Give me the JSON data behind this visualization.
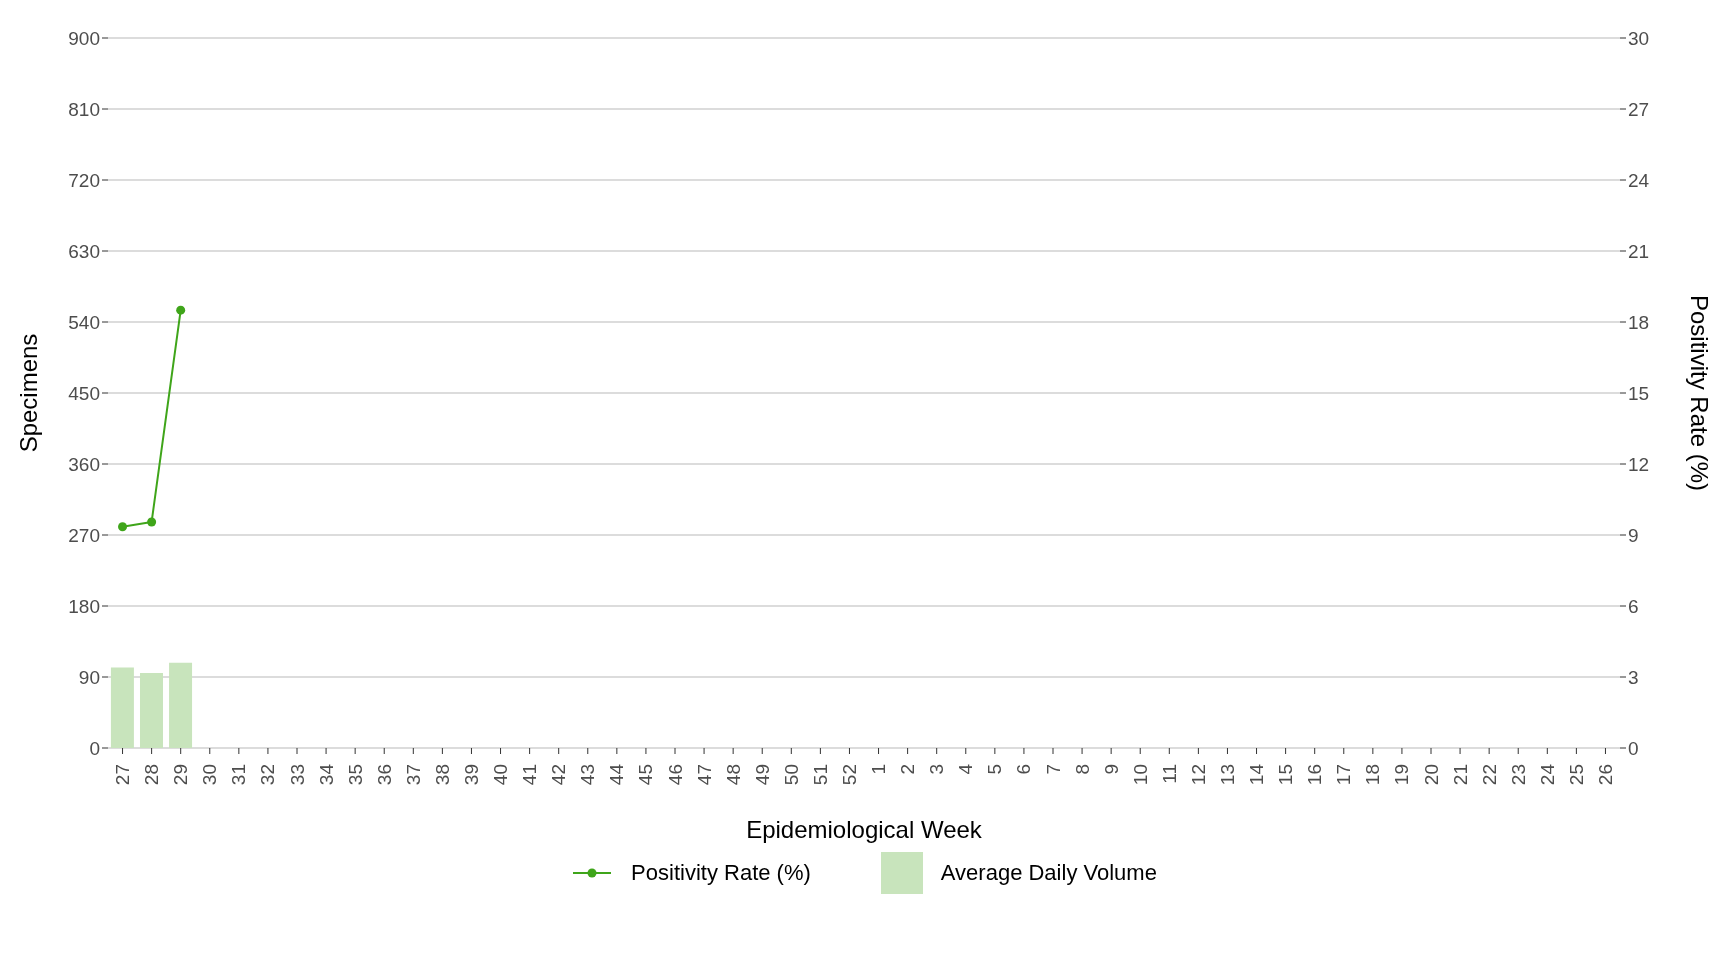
{
  "chart_data": {
    "type": "bar",
    "xlabel": "Epidemiological Week",
    "ylabel": "Specimens",
    "y2label": "Positivity Rate (%)",
    "categories": [
      "27",
      "28",
      "29",
      "30",
      "31",
      "32",
      "33",
      "34",
      "35",
      "36",
      "37",
      "38",
      "39",
      "40",
      "41",
      "42",
      "43",
      "44",
      "45",
      "46",
      "47",
      "48",
      "49",
      "50",
      "51",
      "52",
      "1",
      "2",
      "3",
      "4",
      "5",
      "6",
      "7",
      "8",
      "9",
      "10",
      "11",
      "12",
      "13",
      "14",
      "15",
      "16",
      "17",
      "18",
      "19",
      "20",
      "21",
      "22",
      "23",
      "24",
      "25",
      "26"
    ],
    "series": [
      {
        "name": "Positivity Rate (%)",
        "type": "line",
        "axis": "y2",
        "color": "#3fa51a",
        "marker": "circle",
        "values": [
          9.35,
          9.55,
          18.5,
          null,
          null,
          null,
          null,
          null,
          null,
          null,
          null,
          null,
          null,
          null,
          null,
          null,
          null,
          null,
          null,
          null,
          null,
          null,
          null,
          null,
          null,
          null,
          null,
          null,
          null,
          null,
          null,
          null,
          null,
          null,
          null,
          null,
          null,
          null,
          null,
          null,
          null,
          null,
          null,
          null,
          null,
          null,
          null,
          null,
          null,
          null,
          null,
          null
        ]
      },
      {
        "name": "Average Daily Volume",
        "color": "#c8e4bc",
        "values": [
          102,
          95,
          108,
          null,
          null,
          null,
          null,
          null,
          null,
          null,
          null,
          null,
          null,
          null,
          null,
          null,
          null,
          null,
          null,
          null,
          null,
          null,
          null,
          null,
          null,
          null,
          null,
          null,
          null,
          null,
          null,
          null,
          null,
          null,
          null,
          null,
          null,
          null,
          null,
          null,
          null,
          null,
          null,
          null,
          null,
          null,
          null,
          null,
          null,
          null,
          null,
          null
        ]
      }
    ],
    "ylim": [
      0,
      900
    ],
    "yticks": [
      0,
      90,
      180,
      270,
      360,
      450,
      540,
      630,
      720,
      810,
      900
    ],
    "y2lim": [
      0,
      30
    ],
    "y2ticks": [
      0,
      3,
      6,
      9,
      12,
      15,
      18,
      21,
      24,
      27,
      30
    ],
    "grid": "y",
    "legend": "bottom"
  }
}
